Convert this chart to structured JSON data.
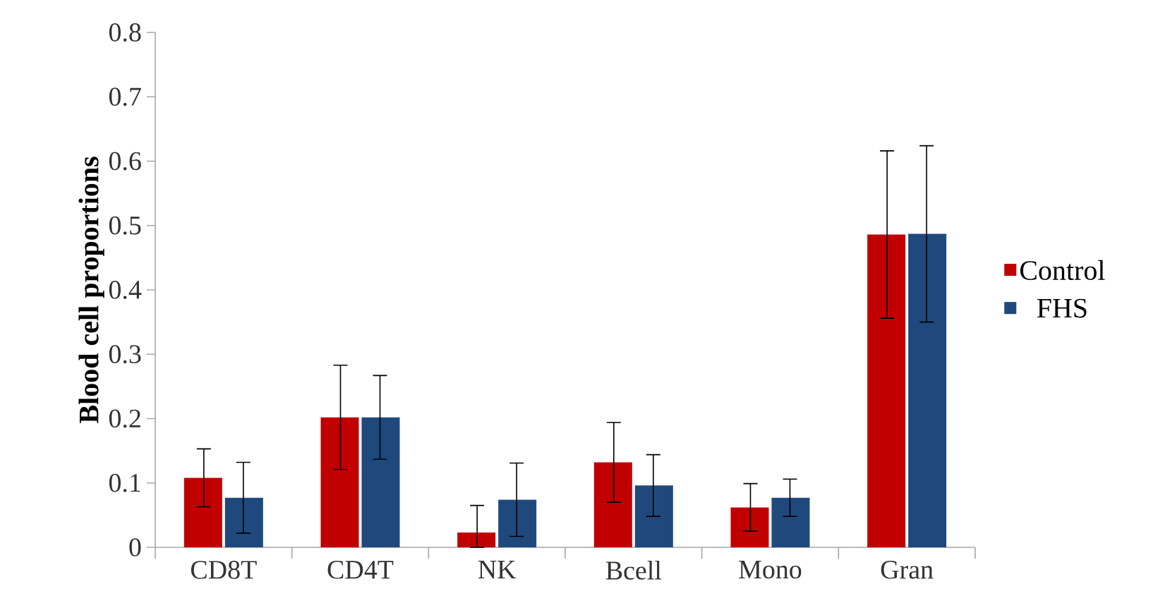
{
  "chart_data": {
    "type": "bar",
    "ylabel": "Blood cell proportions",
    "categories": [
      "CD8T",
      "CD4T",
      "NK",
      "Bcell",
      "Mono",
      "Gran"
    ],
    "series": [
      {
        "name": "Control",
        "color": "#c00000",
        "values": [
          0.108,
          0.202,
          0.023,
          0.132,
          0.062,
          0.486
        ],
        "errors": [
          0.045,
          0.081,
          [
            0,
            0.065
          ],
          0.062,
          0.037,
          0.13
        ]
      },
      {
        "name": "FHS",
        "color": "#1f497d",
        "values": [
          0.077,
          0.202,
          0.074,
          0.096,
          0.077,
          0.487
        ],
        "errors": [
          0.055,
          0.065,
          0.057,
          0.048,
          0.029,
          0.137
        ]
      }
    ],
    "ylim": [
      0,
      0.8
    ],
    "yticks": [
      0,
      0.1,
      0.2,
      0.3,
      0.4,
      0.5,
      0.6,
      0.7,
      0.8
    ],
    "grid": false,
    "legend": "right"
  }
}
